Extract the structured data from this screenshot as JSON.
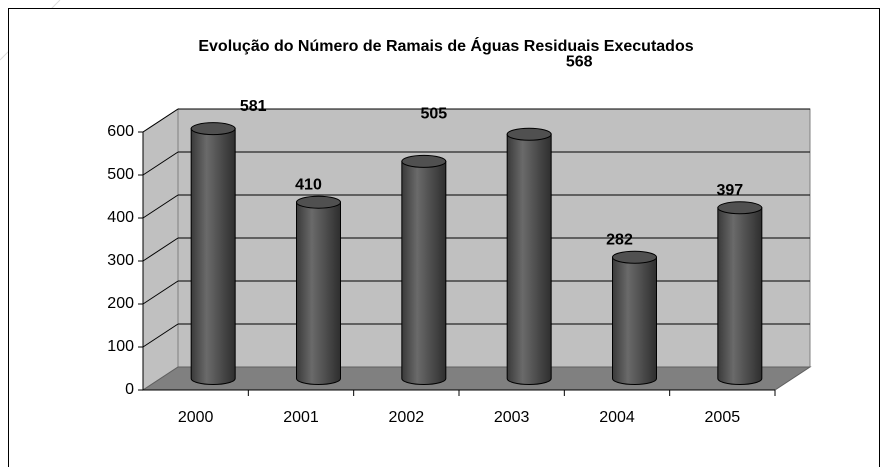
{
  "chart_data": {
    "type": "bar",
    "title": "Evolução do Número de Ramais de Águas Residuais Executados",
    "categories": [
      "2000",
      "2001",
      "2002",
      "2003",
      "2004",
      "2005"
    ],
    "values": [
      581,
      410,
      505,
      568,
      282,
      397
    ],
    "color": "#555555",
    "ylim": [
      0,
      600
    ],
    "yticks": [
      0,
      100,
      200,
      300,
      400,
      500,
      600
    ],
    "grid": true
  }
}
